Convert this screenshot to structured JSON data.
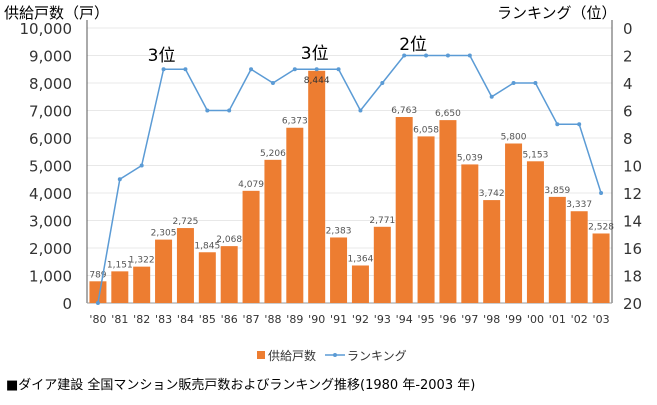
{
  "chart_data": {
    "type": "bar+line",
    "left_axis_title": "供給戸数（戸）",
    "right_axis_title": "ランキング（位）",
    "categories": [
      "'80",
      "'81",
      "'82",
      "'83",
      "'84",
      "'85",
      "'86",
      "'87",
      "'88",
      "'89",
      "'90",
      "'91",
      "'92",
      "'93",
      "'94",
      "'95",
      "'96",
      "'97",
      "'98",
      "'99",
      "'00",
      "'01",
      "'02",
      "'03"
    ],
    "series": [
      {
        "name": "供給戸数",
        "type": "bar",
        "axis": "left",
        "color": "#ED7D31",
        "values": [
          789,
          1151,
          1322,
          2305,
          2725,
          1845,
          2068,
          4079,
          5206,
          6373,
          8444,
          2383,
          1364,
          2771,
          6763,
          6058,
          6650,
          5039,
          3742,
          5800,
          5153,
          3859,
          3337,
          2528
        ],
        "labels": [
          "789",
          "1,151",
          "1,322",
          "2,305",
          "2,725",
          "1,845",
          "2,068",
          "4,079",
          "5,206",
          "6,373",
          "8,444",
          "2,383",
          "1,364",
          "2,771",
          "6,763",
          "6,058",
          "6,650",
          "5,039",
          "3,742",
          "5,800",
          "5,153",
          "3,859",
          "3,337",
          "2,528"
        ]
      },
      {
        "name": "ランキング",
        "type": "line",
        "axis": "right",
        "color": "#5B9BD5",
        "reversed": true,
        "values": [
          20,
          11,
          10,
          3,
          3,
          6,
          6,
          3,
          4,
          3,
          3,
          3,
          6,
          4,
          2,
          2,
          2,
          2,
          5,
          4,
          4,
          7,
          7,
          12
        ]
      }
    ],
    "left_ylim": [
      0,
      10000
    ],
    "left_ticks": [
      "0",
      "1,000",
      "2,000",
      "3,000",
      "4,000",
      "5,000",
      "6,000",
      "7,000",
      "8,000",
      "9,000",
      "10,000"
    ],
    "right_ylim": [
      0,
      20
    ],
    "right_ticks": [
      "0",
      "2",
      "4",
      "6",
      "8",
      "10",
      "12",
      "14",
      "16",
      "18",
      "20"
    ],
    "annotations": [
      "3位",
      "3位",
      "2位"
    ],
    "legend_position": "bottom",
    "grid": true,
    "caption": "■ダイア建設  全国マンション販売戸数およびランキング推移(1980 年-2003 年)"
  }
}
